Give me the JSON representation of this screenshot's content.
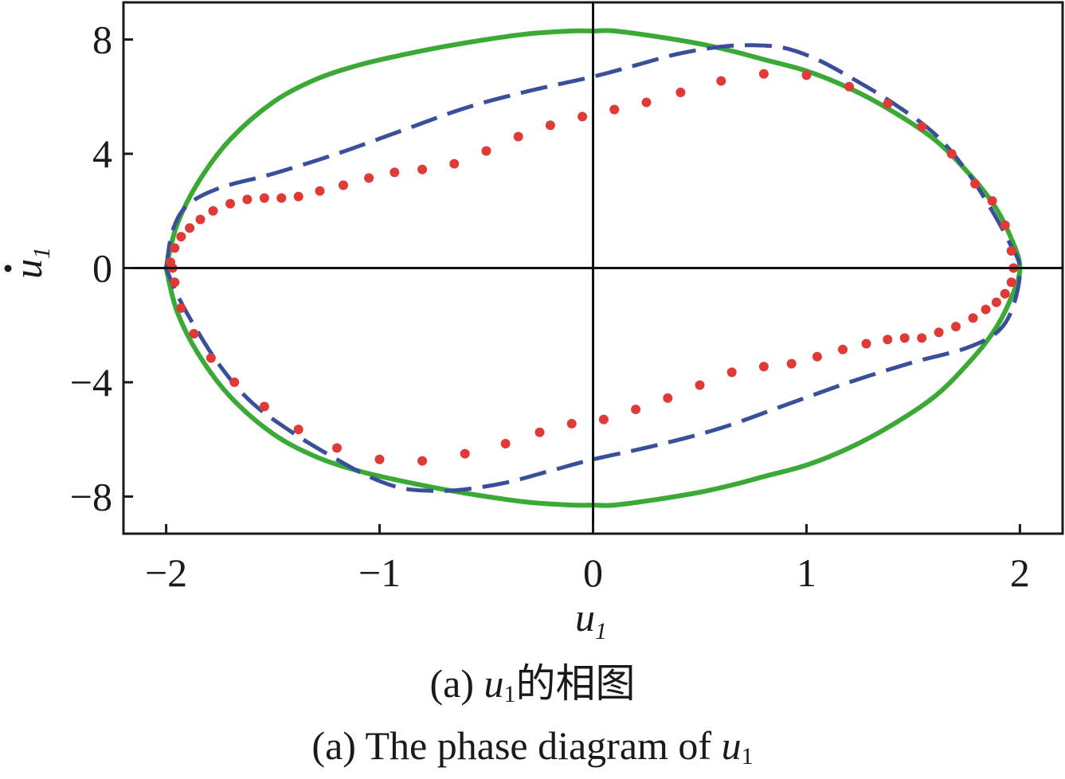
{
  "chart_data": {
    "type": "line",
    "title": "",
    "xlabel": "u",
    "xlabel_sub": "1",
    "ylabel": "u",
    "ylabel_sub": "1",
    "xlim": [
      -2.2,
      2.2
    ],
    "ylim": [
      -9.3,
      9.3
    ],
    "x_ticks": [
      -2,
      -1,
      0,
      1,
      2
    ],
    "x_tick_labels": [
      "−2",
      "−1",
      "0",
      "1",
      "2"
    ],
    "y_ticks": [
      -8,
      -4,
      0,
      4,
      8
    ],
    "y_tick_labels": [
      "−8",
      "−4",
      "0",
      "4",
      "8"
    ],
    "grid": false,
    "zero_lines": true,
    "series": [
      {
        "style": "solid",
        "color": "#3aa935",
        "x": [
          -2.0,
          -1.95,
          -1.85,
          -1.7,
          -1.5,
          -1.3,
          -1.1,
          -0.9,
          -0.7,
          -0.5,
          -0.3,
          -0.1,
          0.0,
          0.1,
          0.3,
          0.5,
          0.65,
          0.8,
          1.0,
          1.2,
          1.4,
          1.6,
          1.75,
          1.87,
          1.95,
          2.0,
          1.95,
          1.87,
          1.75,
          1.6,
          1.4,
          1.2,
          1.0,
          0.8,
          0.65,
          0.5,
          0.3,
          0.1,
          0.0,
          -0.1,
          -0.3,
          -0.5,
          -0.7,
          -0.9,
          -1.1,
          -1.3,
          -1.5,
          -1.7,
          -1.85,
          -1.95,
          -2.0
        ],
        "y": [
          0.0,
          1.5,
          3.0,
          4.5,
          5.8,
          6.6,
          7.1,
          7.45,
          7.75,
          8.0,
          8.2,
          8.3,
          8.3,
          8.3,
          8.1,
          7.85,
          7.6,
          7.3,
          6.9,
          6.3,
          5.5,
          4.5,
          3.4,
          2.3,
          1.2,
          0.0,
          -1.2,
          -2.3,
          -3.4,
          -4.5,
          -5.5,
          -6.3,
          -6.9,
          -7.3,
          -7.6,
          -7.85,
          -8.1,
          -8.3,
          -8.3,
          -8.3,
          -8.2,
          -8.0,
          -7.75,
          -7.45,
          -7.1,
          -6.6,
          -5.8,
          -4.5,
          -3.0,
          -1.5,
          0.0
        ]
      },
      {
        "style": "dashed",
        "color": "#3a4f9b",
        "x": [
          -2.0,
          -1.97,
          -1.9,
          -1.75,
          -1.5,
          -1.2,
          -0.9,
          -0.6,
          -0.3,
          0.0,
          0.2,
          0.4,
          0.6,
          0.75,
          0.9,
          1.05,
          1.2,
          1.4,
          1.6,
          1.75,
          1.87,
          1.95,
          2.0,
          1.97,
          1.9,
          1.75,
          1.5,
          1.2,
          0.9,
          0.6,
          0.3,
          0.0,
          -0.2,
          -0.4,
          -0.6,
          -0.75,
          -0.9,
          -1.05,
          -1.2,
          -1.4,
          -1.6,
          -1.75,
          -1.87,
          -1.95,
          -2.0
        ],
        "y": [
          0.0,
          1.3,
          2.2,
          2.8,
          3.3,
          4.0,
          4.8,
          5.6,
          6.2,
          6.7,
          7.1,
          7.5,
          7.75,
          7.8,
          7.7,
          7.3,
          6.7,
          5.8,
          4.7,
          3.4,
          2.0,
          0.9,
          0.0,
          -1.3,
          -2.2,
          -2.8,
          -3.3,
          -4.0,
          -4.8,
          -5.6,
          -6.2,
          -6.7,
          -7.1,
          -7.5,
          -7.75,
          -7.8,
          -7.7,
          -7.3,
          -6.7,
          -5.8,
          -4.7,
          -3.4,
          -2.0,
          -0.9,
          0.0
        ]
      },
      {
        "style": "dotted",
        "color": "#e03a36",
        "x": [
          -1.98,
          -1.96,
          -1.93,
          -1.89,
          -1.84,
          -1.78,
          -1.7,
          -1.62,
          -1.54,
          -1.46,
          -1.38,
          -1.28,
          -1.17,
          -1.05,
          -0.93,
          -0.8,
          -0.65,
          -0.5,
          -0.35,
          -0.2,
          -0.05,
          0.1,
          0.25,
          0.41,
          0.6,
          0.8,
          1.0,
          1.2,
          1.38,
          1.54,
          1.68,
          1.79,
          1.87,
          1.93,
          1.96,
          1.97,
          1.96,
          1.93,
          1.89,
          1.84,
          1.78,
          1.7,
          1.62,
          1.54,
          1.46,
          1.38,
          1.28,
          1.17,
          1.05,
          0.93,
          0.8,
          0.65,
          0.5,
          0.35,
          0.2,
          0.05,
          -0.1,
          -0.25,
          -0.41,
          -0.6,
          -0.8,
          -1.0,
          -1.2,
          -1.38,
          -1.54,
          -1.68,
          -1.79,
          -1.87,
          -1.93,
          -1.96,
          -1.97
        ],
        "y": [
          0.2,
          0.7,
          1.1,
          1.4,
          1.7,
          2.0,
          2.25,
          2.4,
          2.45,
          2.45,
          2.5,
          2.7,
          2.9,
          3.15,
          3.35,
          3.45,
          3.65,
          4.1,
          4.6,
          5.0,
          5.3,
          5.55,
          5.8,
          6.15,
          6.55,
          6.8,
          6.75,
          6.35,
          5.75,
          4.95,
          4.0,
          2.95,
          2.35,
          1.5,
          0.6,
          0.0,
          -0.5,
          -0.9,
          -1.2,
          -1.45,
          -1.75,
          -2.05,
          -2.25,
          -2.45,
          -2.45,
          -2.5,
          -2.65,
          -2.85,
          -3.1,
          -3.35,
          -3.45,
          -3.65,
          -4.1,
          -4.55,
          -4.95,
          -5.3,
          -5.45,
          -5.75,
          -6.15,
          -6.5,
          -6.75,
          -6.7,
          -6.3,
          -5.65,
          -4.85,
          -4.0,
          -3.15,
          -2.3,
          -1.4,
          -0.5,
          0.0
        ]
      }
    ]
  },
  "caption": {
    "line1_prefix": "(a) ",
    "line1_var": "u",
    "line1_sub": "1",
    "line1_suffix": "的相图",
    "line2_prefix": "(a) The phase diagram of ",
    "line2_var": "u",
    "line2_sub": "1"
  }
}
